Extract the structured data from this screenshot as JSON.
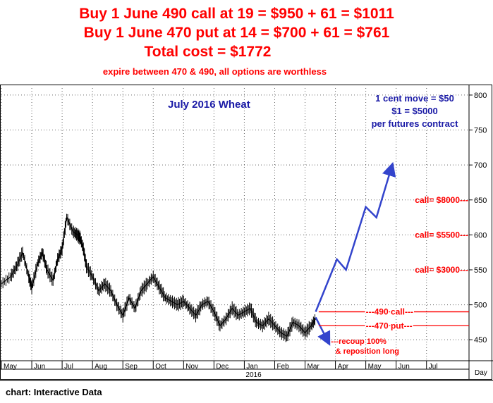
{
  "header": {
    "line1": "Buy 1 June 490 call at 19 = $950 + 61 = $1011",
    "line2": "Buy 1 June 470 put at 14 = $700 + 61 = $761",
    "line3": "Total cost = $1772",
    "line4": "expire between 470 & 490, all options are worthless"
  },
  "footer": {
    "source": "chart: Interactive Data"
  },
  "chart_data": {
    "type": "line",
    "title": "July 2016 Wheat",
    "note_lines": [
      "1 cent move = $50",
      "$1 = $5000",
      "per futures contract"
    ],
    "xlabel": "Day",
    "year_label": "2016",
    "months": [
      "May",
      "Jun",
      "Jul",
      "Aug",
      "Sep",
      "Oct",
      "Nov",
      "Dec",
      "Jan",
      "Feb",
      "Mar",
      "Apr",
      "May",
      "Jun",
      "Jul"
    ],
    "yticks": [
      450,
      500,
      550,
      600,
      650,
      700,
      750,
      800
    ],
    "ylim": [
      420,
      810
    ],
    "xlim": [
      0,
      15.4
    ],
    "price": {
      "x": [
        0,
        0.3,
        0.5,
        0.7,
        0.9,
        1.0,
        1.2,
        1.35,
        1.5,
        1.7,
        1.85,
        2.0,
        2.15,
        2.35,
        2.5,
        2.6,
        2.7,
        2.8,
        3.0,
        3.2,
        3.4,
        3.6,
        3.8,
        4.0,
        4.2,
        4.4,
        4.6,
        4.8,
        5.0,
        5.2,
        5.4,
        5.6,
        5.8,
        6.0,
        6.2,
        6.4,
        6.6,
        6.8,
        7.0,
        7.2,
        7.4,
        7.6,
        7.8,
        8.0,
        8.2,
        8.4,
        8.6,
        8.8,
        9.0,
        9.2,
        9.4,
        9.6,
        9.8,
        10.0,
        10.2,
        10.35
      ],
      "y": [
        530,
        540,
        555,
        575,
        540,
        525,
        560,
        575,
        550,
        535,
        565,
        580,
        625,
        605,
        600,
        595,
        580,
        555,
        540,
        520,
        530,
        520,
        500,
        485,
        510,
        495,
        520,
        530,
        540,
        525,
        510,
        505,
        500,
        505,
        495,
        485,
        500,
        505,
        490,
        470,
        480,
        495,
        485,
        490,
        495,
        475,
        470,
        480,
        470,
        460,
        455,
        475,
        470,
        460,
        470,
        480
      ]
    },
    "projection": {
      "x": [
        10.35,
        11.05,
        11.35,
        12.0,
        12.35,
        12.85
      ],
      "y": [
        490,
        565,
        550,
        640,
        625,
        697
      ]
    },
    "down_arrow": {
      "x": [
        10.35,
        10.75
      ],
      "y": [
        482,
        448
      ]
    },
    "levels": [
      {
        "label": "---490 call---",
        "value": 490
      },
      {
        "label": "---470 put---",
        "value": 470
      }
    ],
    "annotations": [
      {
        "label": "call= $8000---",
        "value": 650
      },
      {
        "label": "call= $5500---",
        "value": 600
      },
      {
        "label": "call= $3000---",
        "value": 550
      }
    ],
    "recoup_lines": [
      "---recoup 100%",
      "& reposition long"
    ],
    "grid": true
  }
}
